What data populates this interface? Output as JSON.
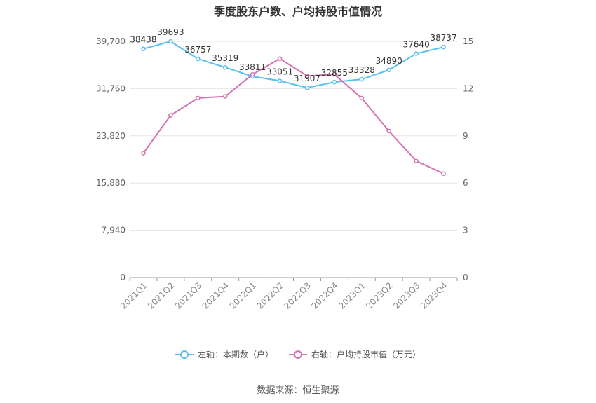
{
  "chart_data": {
    "type": "line",
    "title": "季度股东户数、户均持股市值情况",
    "categories": [
      "2021Q1",
      "2021Q2",
      "2021Q3",
      "2021Q4",
      "2022Q1",
      "2022Q2",
      "2022Q3",
      "2022Q4",
      "2023Q1",
      "2023Q2",
      "2023Q3",
      "2023Q4"
    ],
    "series": [
      {
        "name": "左轴：本期数（户）",
        "axis": "left",
        "color": "#5bc0eb",
        "values": [
          38438,
          39693,
          36757,
          35319,
          33811,
          33051,
          31907,
          32855,
          33328,
          34890,
          37640,
          38737
        ],
        "labels": [
          "38438",
          "39693",
          "36757",
          "35319",
          "33811",
          "33051",
          "31907",
          "32855",
          "33328",
          "34890",
          "37640",
          "38737"
        ]
      },
      {
        "name": "右轴：户均持股市值（万元）",
        "axis": "right",
        "color": "#d473b4",
        "values": [
          7.9,
          10.3,
          11.4,
          11.5,
          12.9,
          13.9,
          12.8,
          12.9,
          11.4,
          9.3,
          7.4,
          6.6
        ]
      }
    ],
    "left_axis": {
      "ylim": [
        0,
        39700
      ],
      "ticks": [
        "0",
        "7,940",
        "15,880",
        "23,820",
        "31,760",
        "39,700"
      ]
    },
    "right_axis": {
      "ylim": [
        0,
        15
      ],
      "ticks": [
        "0",
        "3",
        "6",
        "9",
        "12",
        "15"
      ]
    },
    "grid": true,
    "legend_position": "bottom"
  },
  "source": "数据来源：恒生聚源"
}
